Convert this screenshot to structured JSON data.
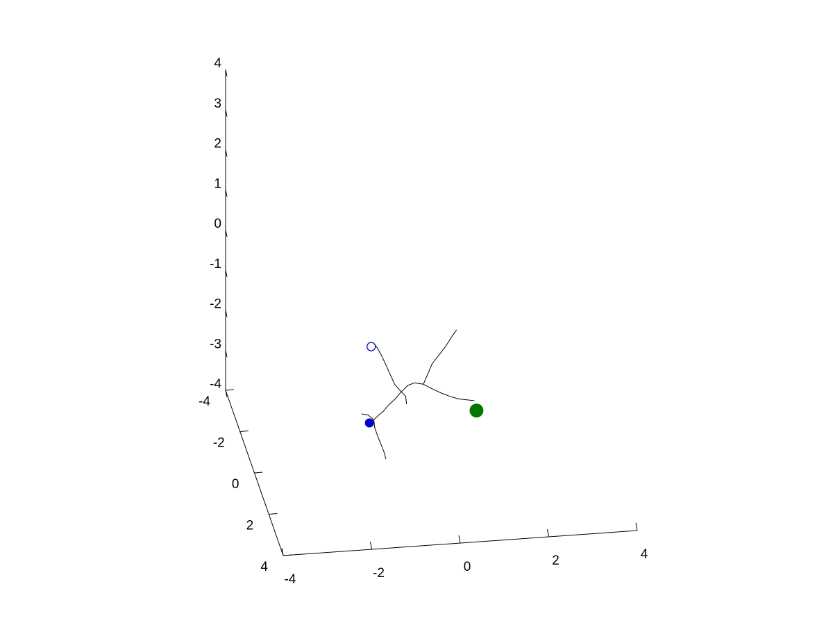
{
  "chart_data": {
    "type": "line",
    "projection": "3d",
    "title": "",
    "xlabel": "",
    "ylabel": "",
    "zlabel": "",
    "grid": false,
    "axis_color": "#000000",
    "trace_color": "#000000",
    "x_axis": {
      "range": [
        -4,
        4
      ],
      "ticks": [
        -4,
        -2,
        0,
        2,
        4
      ],
      "tick_labels": [
        "-4",
        "-2",
        "0",
        "2",
        "4"
      ]
    },
    "y_axis": {
      "range": [
        -4,
        4
      ],
      "ticks": [
        -4,
        -2,
        0,
        2,
        4
      ],
      "tick_labels": [
        "-4",
        "-2",
        "0",
        "2",
        "4"
      ]
    },
    "z_axis": {
      "range": [
        -4,
        4
      ],
      "ticks": [
        -4,
        -3,
        -2,
        -1,
        0,
        1,
        2,
        3,
        4
      ],
      "tick_labels": [
        "-4",
        "-3",
        "-2",
        "-1",
        "0",
        "1",
        "2",
        "3",
        "4"
      ]
    },
    "series": [
      {
        "marker": "line",
        "color": "#000000",
        "points": [
          [
            1.05,
            -0.5,
            -2.85
          ],
          [
            0.9,
            -0.5,
            -2.82
          ],
          [
            0.7,
            -0.5,
            -2.78
          ],
          [
            0.5,
            -0.5,
            -2.7
          ],
          [
            0.3,
            -0.5,
            -2.6
          ],
          [
            0.05,
            -0.5,
            -2.45
          ],
          [
            -0.1,
            -0.5,
            -2.35
          ],
          [
            -0.3,
            -0.5,
            -2.3
          ],
          [
            -0.45,
            -0.5,
            -2.35
          ],
          [
            -0.6,
            -0.5,
            -2.5
          ],
          [
            -0.75,
            -0.5,
            -2.68
          ],
          [
            -0.9,
            -0.5,
            -2.82
          ],
          [
            -1.0,
            -0.5,
            -2.95
          ],
          [
            -1.12,
            -0.5,
            -3.05
          ],
          [
            -1.22,
            -0.5,
            -3.15
          ]
        ]
      },
      {
        "marker": "line",
        "color": "#000000",
        "points": [
          [
            -0.6,
            -0.5,
            -2.5
          ],
          [
            -0.75,
            -0.5,
            -2.3
          ],
          [
            -0.85,
            -0.5,
            -2.05
          ],
          [
            -0.95,
            -0.5,
            -1.8
          ],
          [
            -1.05,
            -0.5,
            -1.55
          ],
          [
            -1.15,
            -0.5,
            -1.35
          ],
          [
            -1.2,
            -0.5,
            -1.28
          ]
        ]
      },
      {
        "marker": "line",
        "color": "#000000",
        "points": [
          [
            -0.1,
            -0.5,
            -2.35
          ],
          [
            0.0,
            -0.5,
            -2.1
          ],
          [
            0.1,
            -0.5,
            -1.85
          ],
          [
            0.25,
            -0.5,
            -1.65
          ],
          [
            0.4,
            -0.5,
            -1.45
          ],
          [
            0.55,
            -0.5,
            -1.2
          ],
          [
            0.65,
            -0.5,
            -1.05
          ]
        ]
      },
      {
        "marker": "line",
        "color": "#000000",
        "points": [
          [
            -1.22,
            -0.5,
            -3.15
          ],
          [
            -1.2,
            -0.5,
            -3.35
          ],
          [
            -1.12,
            -0.5,
            -3.6
          ],
          [
            -1.05,
            -0.5,
            -3.8
          ],
          [
            -0.98,
            -0.5,
            -4.0
          ],
          [
            -0.95,
            -0.5,
            -4.15
          ]
        ]
      },
      {
        "marker": "line",
        "color": "#000000",
        "points": [
          [
            -1.22,
            -0.5,
            -3.15
          ],
          [
            -1.35,
            -0.5,
            -3.02
          ],
          [
            -1.5,
            -0.5,
            -2.98
          ]
        ]
      },
      {
        "marker": "line",
        "color": "#000000",
        "points": [
          [
            -0.6,
            -0.5,
            -2.5
          ],
          [
            -0.5,
            -0.5,
            -2.62
          ],
          [
            -0.48,
            -0.5,
            -2.82
          ]
        ]
      },
      {
        "marker": "filled-circle",
        "color": "#0000cc",
        "points": [
          [
            -1.32,
            -0.5,
            -3.22
          ]
        ]
      },
      {
        "marker": "open-circle",
        "color": "#0000cc",
        "points": [
          [
            -1.28,
            -0.5,
            -1.32
          ]
        ]
      },
      {
        "marker": "large-filled-circle",
        "color": "#007700",
        "points": [
          [
            1.1,
            -0.5,
            -3.1
          ]
        ]
      }
    ]
  }
}
